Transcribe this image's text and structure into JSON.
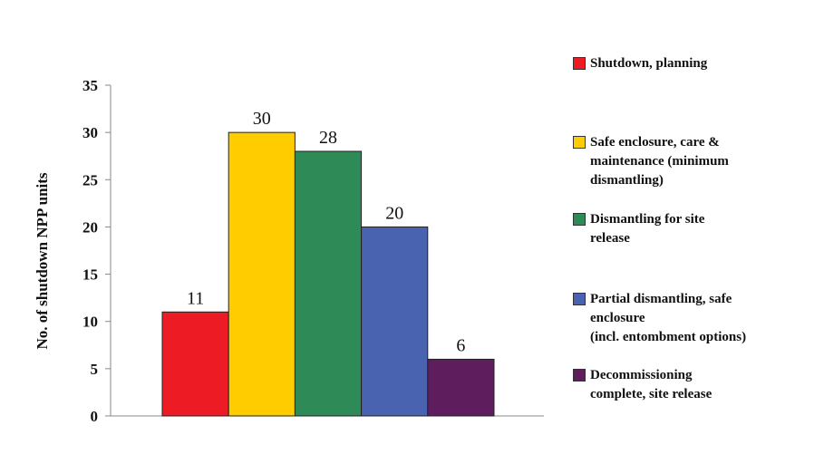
{
  "chart_data": {
    "type": "bar",
    "categories": [
      "Shutdown, planning",
      "Safe enclosure, care & maintenance (minimum dismantling)",
      "Dismantling for site release",
      "Partial dismantling, safe enclosure (incl. entombment options)",
      "Decommissioning complete, site release"
    ],
    "values": [
      11,
      30,
      28,
      20,
      6
    ],
    "data_labels": [
      "11",
      "30",
      "28",
      "20",
      "6"
    ],
    "colors": [
      "#ED1C24",
      "#FFCC00",
      "#2E8B57",
      "#4A63B0",
      "#5E1E5E"
    ],
    "xlabel": "",
    "ylabel": "No. of shutdown NPP units",
    "ylim": [
      0,
      35
    ],
    "yticks": [
      0,
      5,
      10,
      15,
      20,
      25,
      30,
      35
    ],
    "grid": false,
    "legend_position": "right",
    "legend": [
      {
        "label": "Shutdown, planning",
        "color": "#ED1C24"
      },
      {
        "label": "Safe enclosure, care &\nmaintenance (minimum\ndismantling)",
        "color": "#FFCC00"
      },
      {
        "label": "Dismantling for site\nrelease",
        "color": "#2E8B57"
      },
      {
        "label": "Partial dismantling, safe\nenclosure\n(incl. entombment options)",
        "color": "#4A63B0"
      },
      {
        "label": "Decommissioning\ncomplete, site release",
        "color": "#5E1E5E"
      }
    ]
  }
}
